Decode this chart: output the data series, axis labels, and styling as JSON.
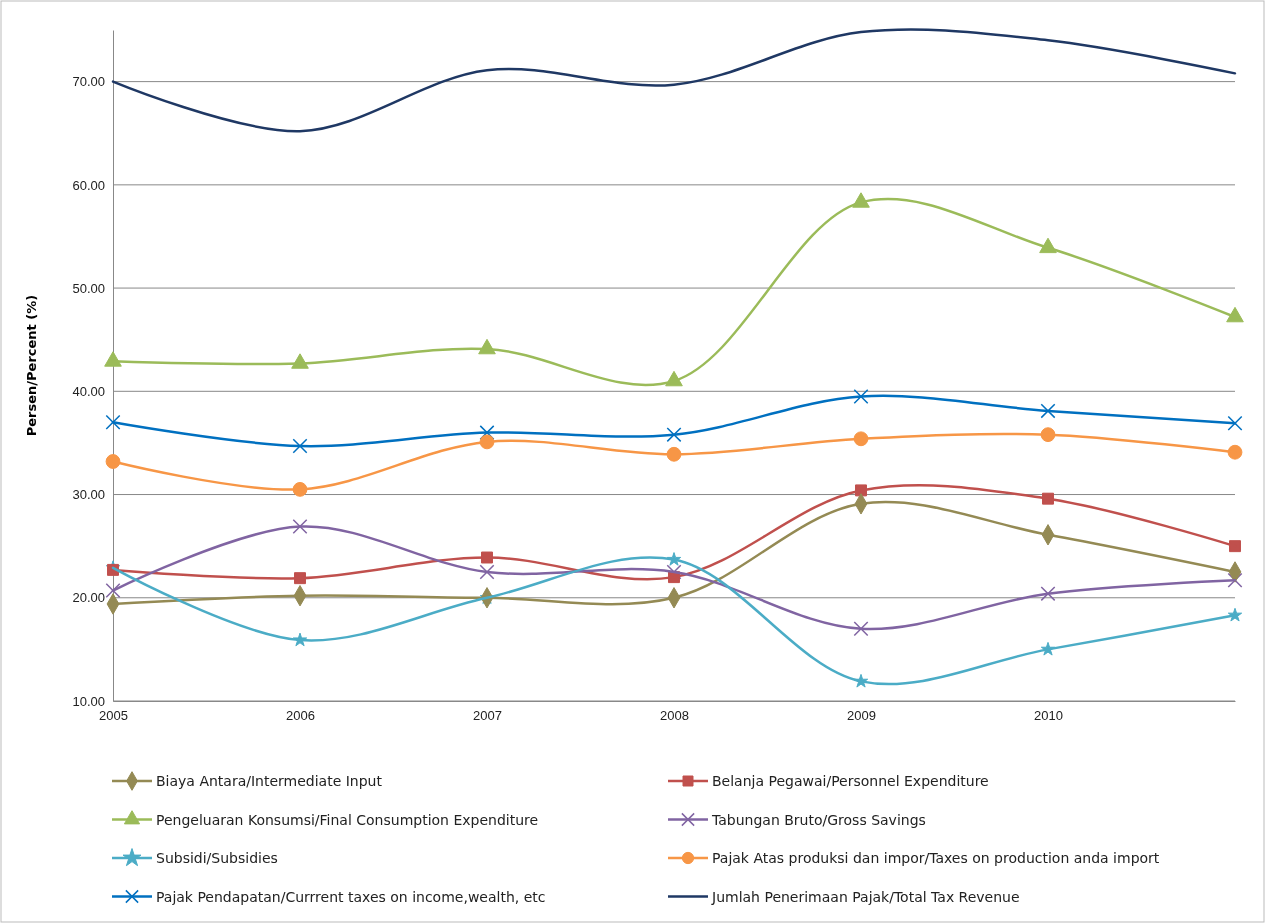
{
  "chart_data": {
    "type": "line",
    "ylabel": "Persen/Percent (%)",
    "categories": [
      "2005",
      "2006",
      "2007",
      "2008",
      "2009",
      "2010",
      null
    ],
    "ylim": [
      10,
      75
    ],
    "yticks": [
      {
        "value": 10,
        "label": "10.00"
      },
      {
        "value": 20,
        "label": "20.00"
      },
      {
        "value": 30,
        "label": "30.00"
      },
      {
        "value": 40,
        "label": "40.00"
      },
      {
        "value": 50,
        "label": "50.00"
      },
      {
        "value": 60,
        "label": "60.00"
      },
      {
        "value": 70,
        "label": "70.00"
      }
    ],
    "grid": "y",
    "legend": "bottom",
    "series": [
      {
        "name": "Biaya Antara/Intermediate Input",
        "color": "#948a54",
        "marker": "diamond",
        "values": [
          19.4,
          20.2,
          20.0,
          20.0,
          29.1,
          26.1,
          22.5
        ]
      },
      {
        "name": "Belanja Pegawai/Personnel Expenditure",
        "color": "#c0504d",
        "marker": "square",
        "values": [
          22.7,
          21.9,
          23.9,
          22.0,
          30.4,
          29.6,
          25.0
        ]
      },
      {
        "name": "Pengeluaran Konsumsi/Final Consumption Expenditure",
        "color": "#9bbb59",
        "marker": "triangle",
        "values": [
          42.9,
          42.7,
          44.1,
          41.0,
          58.3,
          53.9,
          47.2
        ]
      },
      {
        "name": "Tabungan Bruto/Gross Savings",
        "color": "#8064a2",
        "marker": "cross",
        "values": [
          20.7,
          26.9,
          22.5,
          22.5,
          17.0,
          20.4,
          21.7
        ]
      },
      {
        "name": "Subsidi/Subsidies",
        "color": "#4bacc6",
        "marker": "star",
        "values": [
          22.9,
          15.9,
          20.0,
          23.7,
          11.9,
          15.0,
          18.3
        ]
      },
      {
        "name": "Pajak Atas produksi dan impor/Taxes on production anda import",
        "color": "#f79646",
        "marker": "circle",
        "values": [
          33.2,
          30.5,
          35.1,
          33.9,
          35.4,
          35.8,
          34.1
        ]
      },
      {
        "name": "Pajak Pendapatan/Currrent taxes on income,wealth, etc",
        "color": "#0070c0",
        "marker": "cross",
        "values": [
          37.0,
          34.7,
          36.0,
          35.8,
          39.5,
          38.1,
          36.9
        ]
      },
      {
        "name": "Jumlah Penerimaan Pajak/Total Tax Revenue",
        "color": "#1f3864",
        "marker": "none",
        "values": [
          70.0,
          65.2,
          71.1,
          69.7,
          74.8,
          74.0,
          70.8
        ]
      }
    ]
  }
}
